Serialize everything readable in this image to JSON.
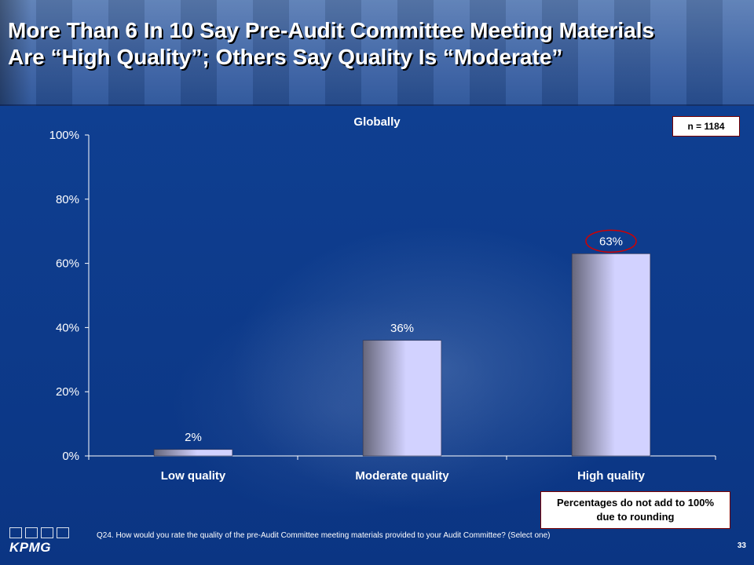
{
  "slide": {
    "title_line1": "More Than 6 In 10 Say Pre-Audit Committee Meeting Materials",
    "title_line2": "Are “High Quality”; Others Say Quality Is “Moderate”",
    "sample_size": "n = 1184",
    "note": "Percentages do not add to 100% due to rounding",
    "question": "Q24. How would you rate the quality of the pre-Audit Committee meeting materials provided to your Audit Committee? (Select one)",
    "page_number": "33",
    "logo_text": "KPMG"
  },
  "chart_data": {
    "type": "bar",
    "title": "Globally",
    "categories": [
      "Low quality",
      "Moderate quality",
      "High quality"
    ],
    "values": [
      2,
      36,
      63
    ],
    "value_labels": [
      "2%",
      "36%",
      "63%"
    ],
    "highlighted_index": 2,
    "ylim": [
      0,
      100
    ],
    "yticks": [
      0,
      20,
      40,
      60,
      80,
      100
    ],
    "ytick_labels": [
      "0%",
      "20%",
      "40%",
      "60%",
      "80%",
      "100%"
    ],
    "xlabel": "",
    "ylabel": "",
    "grid": false,
    "legend": "none",
    "colors": {
      "bar_light": "#d2d2ff",
      "bar_dark": "#66667a",
      "highlight_ring": "#d00000",
      "axis": "#ffffff"
    }
  }
}
